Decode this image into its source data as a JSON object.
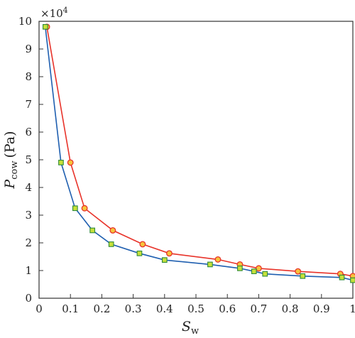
{
  "chart_data": {
    "type": "line",
    "xlabel": {
      "main": "S",
      "sub": "w"
    },
    "ylabel": {
      "main": "P",
      "sub": "cow",
      "unit": "(Pa)"
    },
    "y_multiplier": {
      "base": "×10",
      "exp": "4"
    },
    "xlim": [
      0,
      1
    ],
    "ylim": [
      0,
      10
    ],
    "x_ticks": [
      "0",
      "0.1",
      "0.2",
      "0.3",
      "0.4",
      "0.5",
      "0.6",
      "0.7",
      "0.8",
      "0.9",
      "1"
    ],
    "y_ticks": [
      "0",
      "1",
      "2",
      "3",
      "4",
      "5",
      "6",
      "7",
      "8",
      "9",
      "10"
    ],
    "grid": false,
    "series": [
      {
        "color": "#e8332a",
        "marker": "circle",
        "marker_fill": "#f5c33b",
        "marker_stroke": "#e8332a",
        "points": [
          [
            0.025,
            9.8
          ],
          [
            0.1,
            4.9
          ],
          [
            0.145,
            3.25
          ],
          [
            0.235,
            2.45
          ],
          [
            0.33,
            1.95
          ],
          [
            0.415,
            1.62
          ],
          [
            0.57,
            1.4
          ],
          [
            0.64,
            1.22
          ],
          [
            0.7,
            1.08
          ],
          [
            0.825,
            0.97
          ],
          [
            0.96,
            0.88
          ],
          [
            1.0,
            0.8
          ]
        ]
      },
      {
        "color": "#1f5fb0",
        "marker": "square",
        "marker_fill": "#c6e03a",
        "marker_stroke": "#2f8a3a",
        "points": [
          [
            0.02,
            9.8
          ],
          [
            0.07,
            4.9
          ],
          [
            0.115,
            3.25
          ],
          [
            0.17,
            2.45
          ],
          [
            0.23,
            1.95
          ],
          [
            0.32,
            1.62
          ],
          [
            0.4,
            1.38
          ],
          [
            0.545,
            1.22
          ],
          [
            0.64,
            1.08
          ],
          [
            0.685,
            0.97
          ],
          [
            0.72,
            0.88
          ],
          [
            0.84,
            0.8
          ],
          [
            0.965,
            0.75
          ],
          [
            1.0,
            0.65
          ]
        ]
      }
    ]
  }
}
